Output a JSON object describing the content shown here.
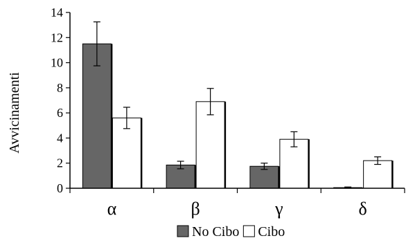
{
  "chart_data": {
    "type": "bar",
    "title": "",
    "xlabel": "",
    "ylabel": "Avvicinamenti",
    "categories": [
      "α",
      "β",
      "γ",
      "δ"
    ],
    "ylim": [
      0,
      14
    ],
    "yticks": [
      0,
      2,
      4,
      6,
      8,
      10,
      12,
      14
    ],
    "grid": false,
    "legend_position": "bottom",
    "series": [
      {
        "name": "No Cibo",
        "color": "#666666",
        "values": [
          11.5,
          1.85,
          1.75,
          0.05
        ],
        "errors": [
          1.75,
          0.3,
          0.25,
          0.05
        ]
      },
      {
        "name": "Cibo",
        "color": "#ffffff",
        "values": [
          5.6,
          6.9,
          3.9,
          2.2
        ],
        "errors": [
          0.85,
          1.05,
          0.6,
          0.3
        ]
      }
    ]
  }
}
